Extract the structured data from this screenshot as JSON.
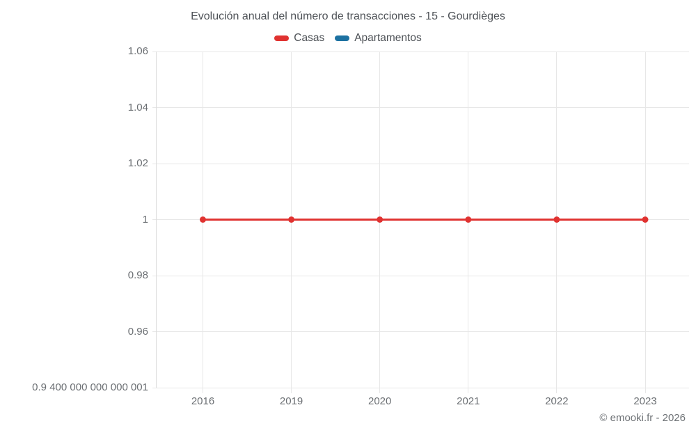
{
  "watermark": "© emooki.fr - 2026",
  "chart_data": {
    "type": "line",
    "title": "Evolución anual del número de transacciones - 15 - Gourdièges",
    "categories": [
      "2016",
      "2019",
      "2020",
      "2021",
      "2022",
      "2023"
    ],
    "series": [
      {
        "name": "Casas",
        "color": "#e03230",
        "values": [
          1,
          1,
          1,
          1,
          1,
          1
        ]
      },
      {
        "name": "Apartamentos",
        "color": "#1c71a1",
        "values": []
      }
    ],
    "y_ticks": [
      {
        "value": 1.06,
        "label": "1.06"
      },
      {
        "value": 1.04,
        "label": "1.04"
      },
      {
        "value": 1.02,
        "label": "1.02"
      },
      {
        "value": 1,
        "label": "1"
      },
      {
        "value": 0.98,
        "label": "0.98"
      },
      {
        "value": 0.96,
        "label": "0.96"
      },
      {
        "value": 0.9400000000000001,
        "label": "0.9 400 000 000 000 001"
      }
    ],
    "ylim": [
      0.94,
      1.06
    ],
    "grid": true,
    "legend_position": "top",
    "xlabel": "",
    "ylabel": ""
  },
  "colors": {
    "title_text": "#4d5156",
    "tick_text": "#6b6f73",
    "gridline": "#e7e7e7",
    "axis_line": "#dcdcdc",
    "background": "#ffffff"
  }
}
